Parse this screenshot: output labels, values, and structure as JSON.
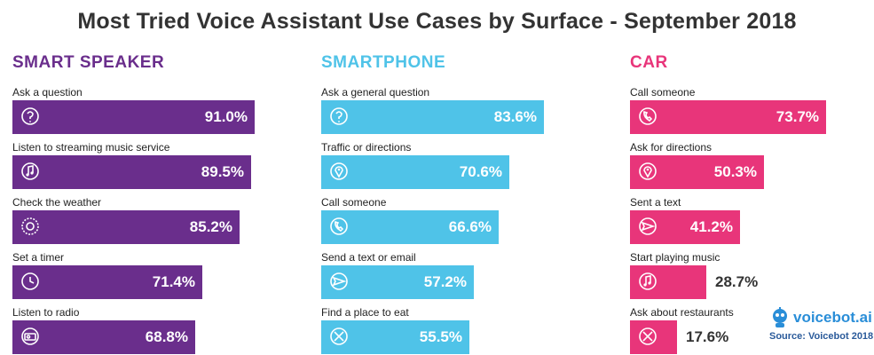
{
  "title": "Most Tried Voice Assistant Use Cases by Surface - September 2018",
  "chart_data": [
    {
      "type": "bar",
      "title": "SMART SPEAKER",
      "color": "#6a2e8c",
      "categories": [
        "Ask a question",
        "Listen to streaming music service",
        "Check the weather",
        "Set a timer",
        "Listen to radio"
      ],
      "values": [
        91.0,
        89.5,
        85.2,
        71.4,
        68.8
      ],
      "value_labels": [
        "91.0%",
        "89.5%",
        "85.2%",
        "71.4%",
        "68.8%"
      ],
      "icons": [
        "question-icon",
        "music-note-icon",
        "weather-icon",
        "timer-icon",
        "radio-icon"
      ],
      "xlim": [
        0,
        100
      ]
    },
    {
      "type": "bar",
      "title": "SMARTPHONE",
      "color": "#4fc3e8",
      "categories": [
        "Ask a general question",
        "Traffic or directions",
        "Call someone",
        "Send a text or email",
        "Find a place to eat"
      ],
      "values": [
        83.6,
        70.6,
        66.6,
        57.2,
        55.5
      ],
      "value_labels": [
        "83.6%",
        "70.6%",
        "66.6%",
        "57.2%",
        "55.5%"
      ],
      "icons": [
        "question-icon",
        "map-pin-icon",
        "phone-icon",
        "send-icon",
        "fork-knife-icon"
      ],
      "xlim": [
        0,
        100
      ]
    },
    {
      "type": "bar",
      "title": "CAR",
      "color": "#e8357a",
      "categories": [
        "Call someone",
        "Ask for directions",
        "Sent a text",
        "Start playing music",
        "Ask about restaurants"
      ],
      "values": [
        73.7,
        50.3,
        41.2,
        28.7,
        17.6
      ],
      "value_labels": [
        "73.7%",
        "50.3%",
        "41.2%",
        "28.7%",
        "17.6%"
      ],
      "icons": [
        "phone-icon",
        "map-pin-icon",
        "send-icon",
        "music-note-icon",
        "fork-knife-icon"
      ],
      "xlim": [
        0,
        100
      ]
    }
  ],
  "logo": {
    "text": "voicebot.ai"
  },
  "source": "Source: Voicebot 2018"
}
